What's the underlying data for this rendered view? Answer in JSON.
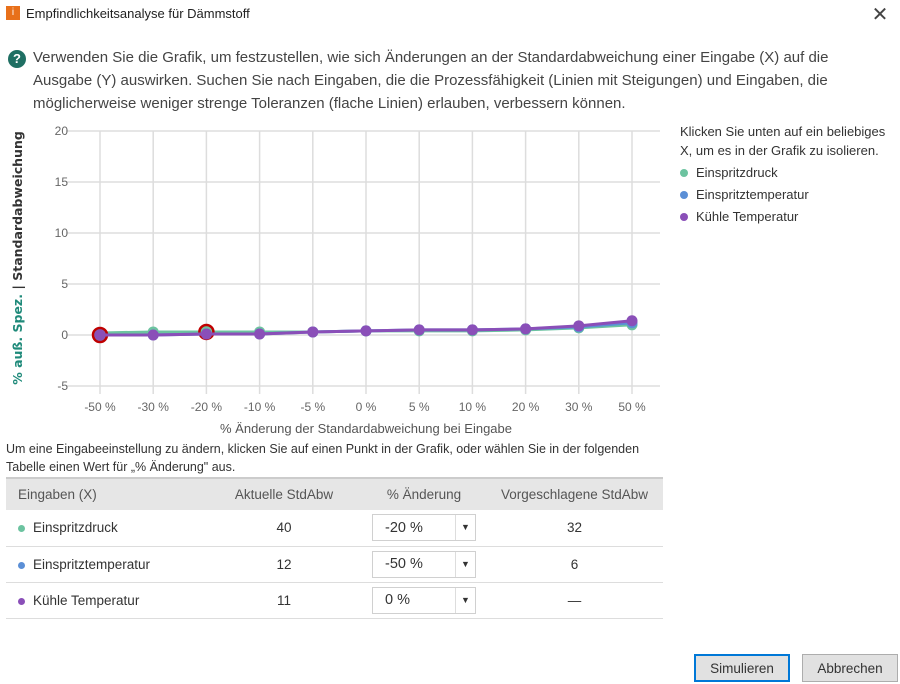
{
  "window": {
    "title": "Empfindlichkeitsanalyse für Dämmstoff",
    "close": "✕",
    "app_icon": "💡"
  },
  "intro": "Verwenden Sie die Grafik, um festzustellen, wie sich Änderungen an der Standardabweichung einer Eingabe (X) auf die Ausgabe (Y) auswirken. Suchen Sie nach Eingaben, die die Prozessfähigkeit (Linien mit Steigungen) und Eingaben, die möglicherweise weniger strenge Toleranzen (flache Linien) erlauben, verbessern können.",
  "help_icon": "?",
  "legend": {
    "hint": "Klicken Sie unten auf ein beliebiges X, um es in der Grafik zu isolieren.",
    "items": [
      "Einspritzdruck",
      "Einspritztemperatur",
      "Kühle Temperatur"
    ]
  },
  "chart_data": {
    "type": "line",
    "categories": [
      "-50 %",
      "-30 %",
      "-20 %",
      "-10 %",
      "-5 %",
      "0 %",
      "5 %",
      "10 %",
      "20 %",
      "30 %",
      "50 %"
    ],
    "ylabel_part1": "% auß. Spez.",
    "ylabel_sep": "|",
    "ylabel_part2": "Standardabweichung",
    "xlabel": "% Änderung der Standardabweichung bei Eingabe",
    "ylim": [
      -5,
      20
    ],
    "yticks": [
      "20",
      "15",
      "10",
      "5",
      "0",
      "-5"
    ],
    "grid": true,
    "series": [
      {
        "name": "Einspritzdruck",
        "color": "#6cc3a0",
        "values": [
          0.2,
          0.3,
          0.3,
          0.3,
          0.3,
          0.4,
          0.4,
          0.4,
          0.5,
          0.7,
          1.0
        ],
        "selected_index": 2
      },
      {
        "name": "Einspritztemperatur",
        "color": "#5b8fd6",
        "values": [
          0.0,
          0.0,
          0.1,
          0.1,
          0.3,
          0.4,
          0.5,
          0.5,
          0.6,
          0.8,
          1.2
        ],
        "selected_index": 0
      },
      {
        "name": "Kühle Temperatur",
        "color": "#8a4fb8",
        "values": [
          0.0,
          0.0,
          0.1,
          0.1,
          0.3,
          0.4,
          0.5,
          0.5,
          0.6,
          0.9,
          1.4
        ],
        "selected_index": null
      }
    ],
    "highlight_color": "#c00000"
  },
  "instructions": "Um eine Eingabeeinstellung zu ändern, klicken Sie auf einen Punkt in der Grafik, oder wählen Sie in der folgenden Tabelle einen Wert für „% Änderung\" aus.",
  "table": {
    "headers": [
      "Eingaben (X)",
      "Aktuelle StdAbw",
      "% Änderung",
      "Vorgeschlagene StdAbw"
    ],
    "rows": [
      {
        "name": "Einspritzdruck",
        "color": "#6cc3a0",
        "current": "40",
        "change": "-20 %",
        "suggested": "32"
      },
      {
        "name": "Einspritztemperatur",
        "color": "#5b8fd6",
        "current": "12",
        "change": "-50 %",
        "suggested": "6"
      },
      {
        "name": "Kühle Temperatur",
        "color": "#8a4fb8",
        "current": "11",
        "change": "0 %",
        "suggested": "—"
      }
    ]
  },
  "buttons": {
    "simulate": "Simulieren",
    "cancel": "Abbrechen"
  }
}
